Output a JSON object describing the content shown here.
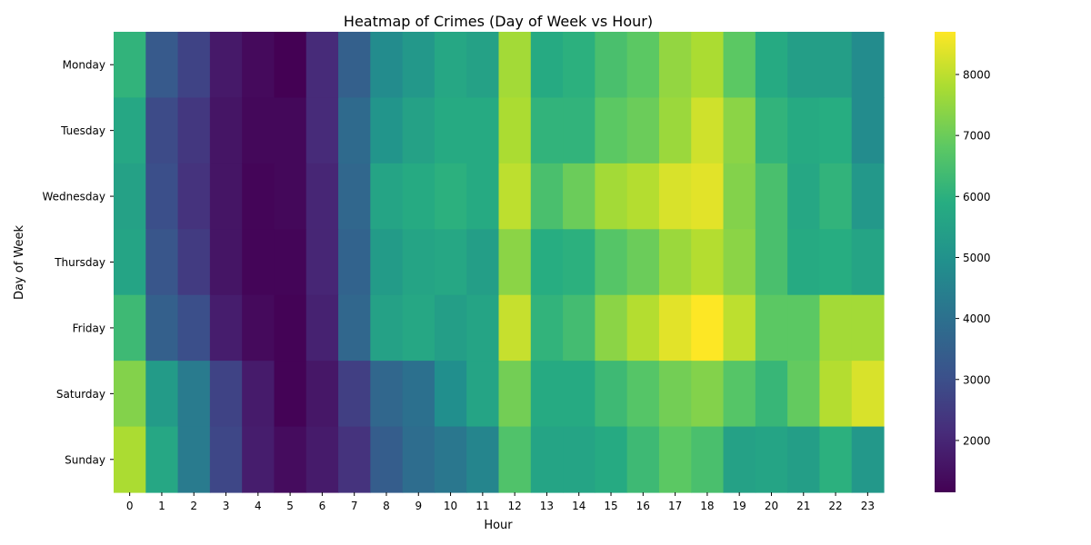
{
  "chart_data": {
    "type": "heatmap",
    "title": "Heatmap of Crimes (Day of Week vs Hour)",
    "xlabel": "Hour",
    "ylabel": "Day of Week",
    "x_categories": [
      "0",
      "1",
      "2",
      "3",
      "4",
      "5",
      "6",
      "7",
      "8",
      "9",
      "10",
      "11",
      "12",
      "13",
      "14",
      "15",
      "16",
      "17",
      "18",
      "19",
      "20",
      "21",
      "22",
      "23"
    ],
    "y_categories": [
      "Monday",
      "Tuesday",
      "Wednesday",
      "Thursday",
      "Friday",
      "Saturday",
      "Sunday"
    ],
    "values": [
      [
        6100,
        3300,
        2700,
        1700,
        1350,
        1150,
        2100,
        3500,
        4800,
        5200,
        5700,
        5500,
        7700,
        5800,
        6000,
        6500,
        6800,
        7500,
        7800,
        6800,
        5800,
        5400,
        5400,
        4800
      ],
      [
        5700,
        2900,
        2400,
        1600,
        1300,
        1300,
        2100,
        3800,
        5100,
        5500,
        5800,
        5800,
        7800,
        6100,
        6100,
        6800,
        7000,
        7600,
        8200,
        7400,
        6100,
        5800,
        5900,
        4800
      ],
      [
        5500,
        3000,
        2300,
        1600,
        1250,
        1300,
        2000,
        3700,
        5600,
        5800,
        6000,
        5800,
        8000,
        6500,
        7000,
        7700,
        7900,
        8300,
        8400,
        7300,
        6500,
        5700,
        6100,
        5200
      ],
      [
        5600,
        3200,
        2500,
        1600,
        1250,
        1250,
        2000,
        3600,
        5300,
        5600,
        5700,
        5400,
        7400,
        5900,
        6000,
        6700,
        7000,
        7600,
        7900,
        7400,
        6500,
        5800,
        5900,
        5600
      ],
      [
        6300,
        3500,
        3000,
        1800,
        1350,
        1200,
        1900,
        3700,
        5500,
        5700,
        5400,
        5600,
        8100,
        6100,
        6400,
        7400,
        7900,
        8400,
        8700,
        8000,
        6800,
        6800,
        7700,
        7700
      ],
      [
        7300,
        5300,
        4300,
        2700,
        1750,
        1200,
        1650,
        2600,
        3700,
        4000,
        4900,
        5600,
        7100,
        5800,
        5800,
        6300,
        6700,
        7100,
        7300,
        6700,
        6200,
        6900,
        7900,
        8300
      ],
      [
        7800,
        5700,
        4300,
        2800,
        1800,
        1400,
        1750,
        2300,
        3400,
        3900,
        4200,
        4600,
        6600,
        5600,
        5600,
        5800,
        6300,
        6800,
        6500,
        5500,
        5600,
        5400,
        6000,
        5200
      ]
    ],
    "colormap": "viridis",
    "colorbar_ticks": [
      2000,
      3000,
      4000,
      5000,
      6000,
      7000,
      8000
    ],
    "vmin": 1150,
    "vmax": 8700,
    "grid": false
  }
}
